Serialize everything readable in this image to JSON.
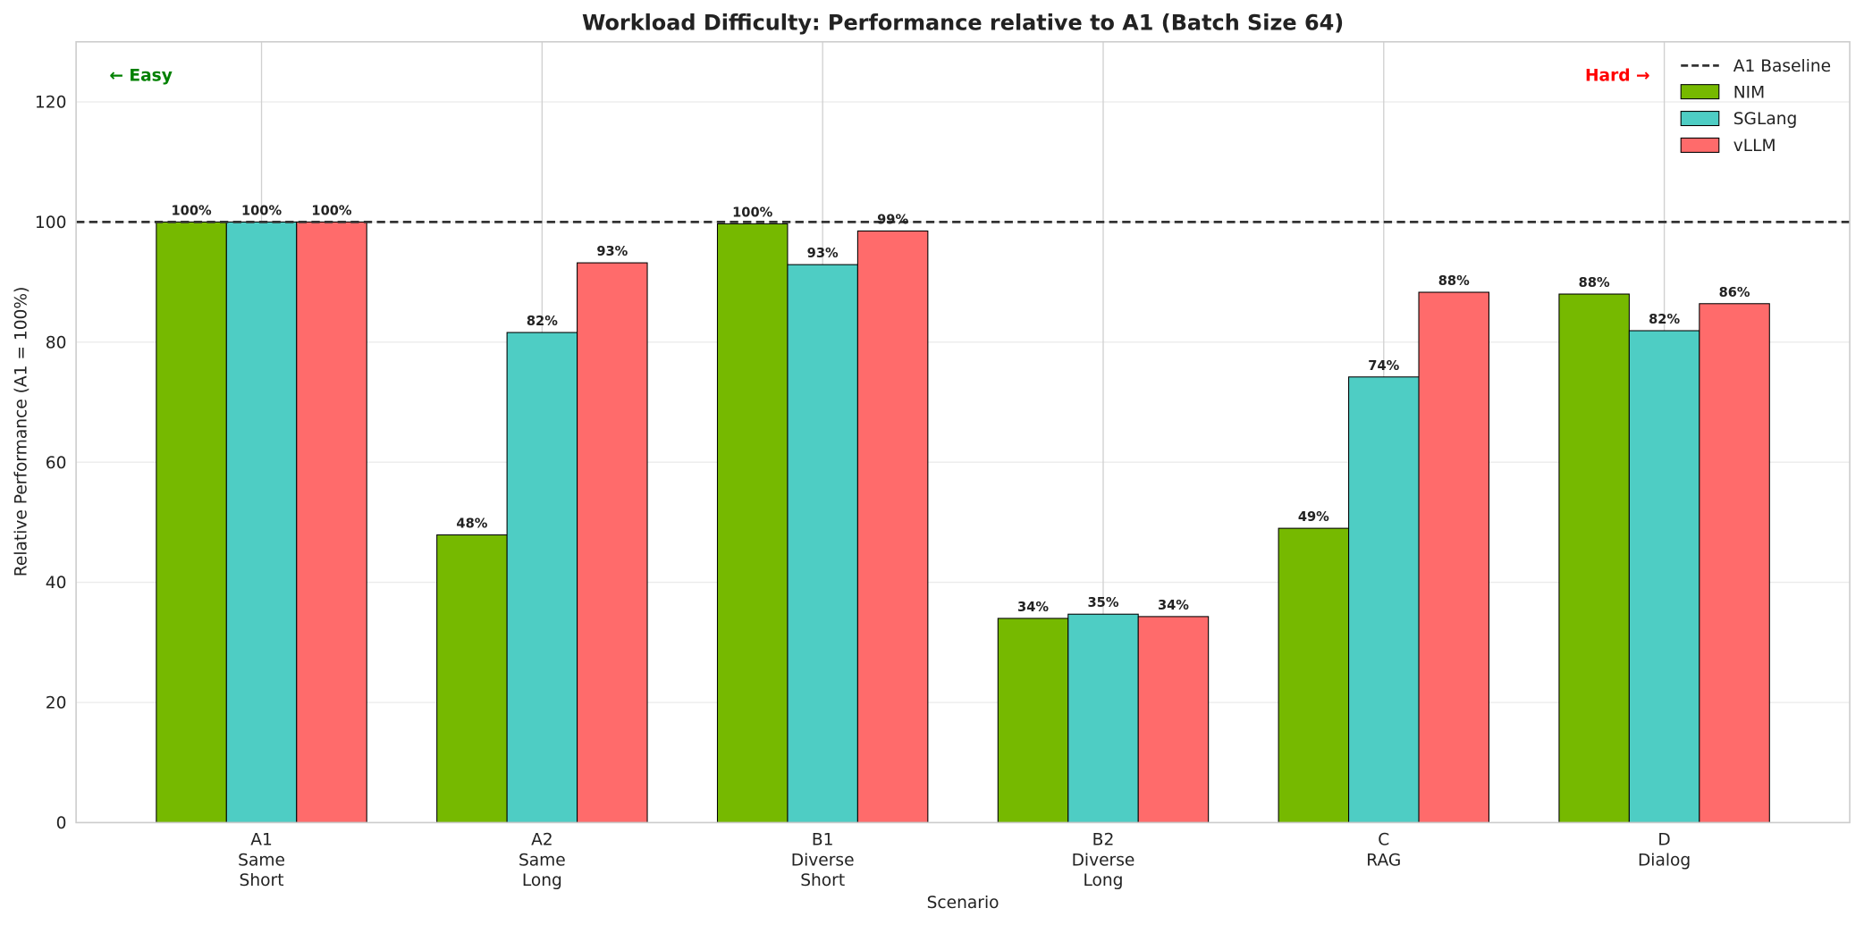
{
  "chart_data": {
    "type": "bar",
    "title": "Workload Difficulty: Performance relative to A1 (Batch Size 64)",
    "xlabel": "Scenario",
    "ylabel": "Relative Performance (A1 = 100%)",
    "ylim": [
      0,
      130
    ],
    "yticks": [
      0,
      20,
      40,
      60,
      80,
      100,
      120
    ],
    "grid": true,
    "legend_position": "top-right",
    "categories": [
      "A1\nSame\nShort",
      "A2\nSame\nLong",
      "B1\nDiverse\nShort",
      "B2\nDiverse\nLong",
      "C\nRAG",
      "D\nDialog"
    ],
    "series": [
      {
        "name": "NIM",
        "color": "#76b900",
        "values": [
          100,
          47.9,
          99.7,
          34.0,
          49.0,
          88.0
        ],
        "labels": [
          "100%",
          "48%",
          "100%",
          "34%",
          "49%",
          "88%"
        ]
      },
      {
        "name": "SGLang",
        "color": "#4ecdc4",
        "values": [
          100,
          81.6,
          92.9,
          34.7,
          74.2,
          81.9
        ],
        "labels": [
          "100%",
          "82%",
          "93%",
          "35%",
          "74%",
          "82%"
        ]
      },
      {
        "name": "vLLM",
        "color": "#ff6b6b",
        "values": [
          100,
          93.2,
          98.5,
          34.3,
          88.3,
          86.4
        ],
        "labels": [
          "100%",
          "93%",
          "99%",
          "34%",
          "88%",
          "86%"
        ]
      }
    ],
    "baseline": {
      "name": "A1 Baseline",
      "value": 100,
      "color": "#333333"
    },
    "annotations": {
      "easy": {
        "text": "← Easy",
        "color": "#008000"
      },
      "hard": {
        "text": "Hard →",
        "color": "#ff0000"
      }
    }
  }
}
